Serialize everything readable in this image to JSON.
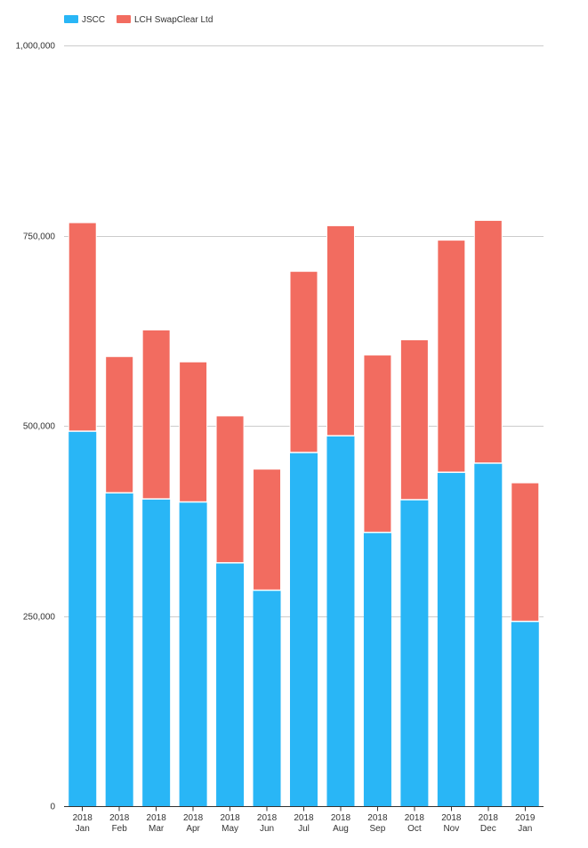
{
  "chart_data": {
    "type": "bar",
    "stacked": true,
    "categories": [
      [
        "2018",
        "Jan"
      ],
      [
        "2018",
        "Feb"
      ],
      [
        "2018",
        "Mar"
      ],
      [
        "2018",
        "Apr"
      ],
      [
        "2018",
        "May"
      ],
      [
        "2018",
        "Jun"
      ],
      [
        "2018",
        "Jul"
      ],
      [
        "2018",
        "Aug"
      ],
      [
        "2018",
        "Sep"
      ],
      [
        "2018",
        "Oct"
      ],
      [
        "2018",
        "Nov"
      ],
      [
        "2018",
        "Dec"
      ],
      [
        "2019",
        "Jan"
      ]
    ],
    "series": [
      {
        "name": "JSCC",
        "color": "#29b6f6",
        "values": [
          492000,
          411000,
          403000,
          399000,
          319000,
          283000,
          464000,
          486000,
          359000,
          402000,
          438000,
          450000,
          242000
        ]
      },
      {
        "name": "LCH SwapClear Ltd",
        "color": "#f26c60",
        "values": [
          275000,
          180000,
          223000,
          185000,
          194000,
          160000,
          239000,
          277000,
          234000,
          211000,
          306000,
          320000,
          183000
        ]
      }
    ],
    "ylim": [
      0,
      1000000
    ],
    "yticks": [
      0,
      250000,
      500000,
      750000,
      1000000
    ],
    "ytick_labels": [
      "0",
      "250,000",
      "500,000",
      "750,000",
      "1,000,000"
    ],
    "grid": true,
    "legend_position": "top-left",
    "title": "",
    "xlabel": "",
    "ylabel": ""
  }
}
